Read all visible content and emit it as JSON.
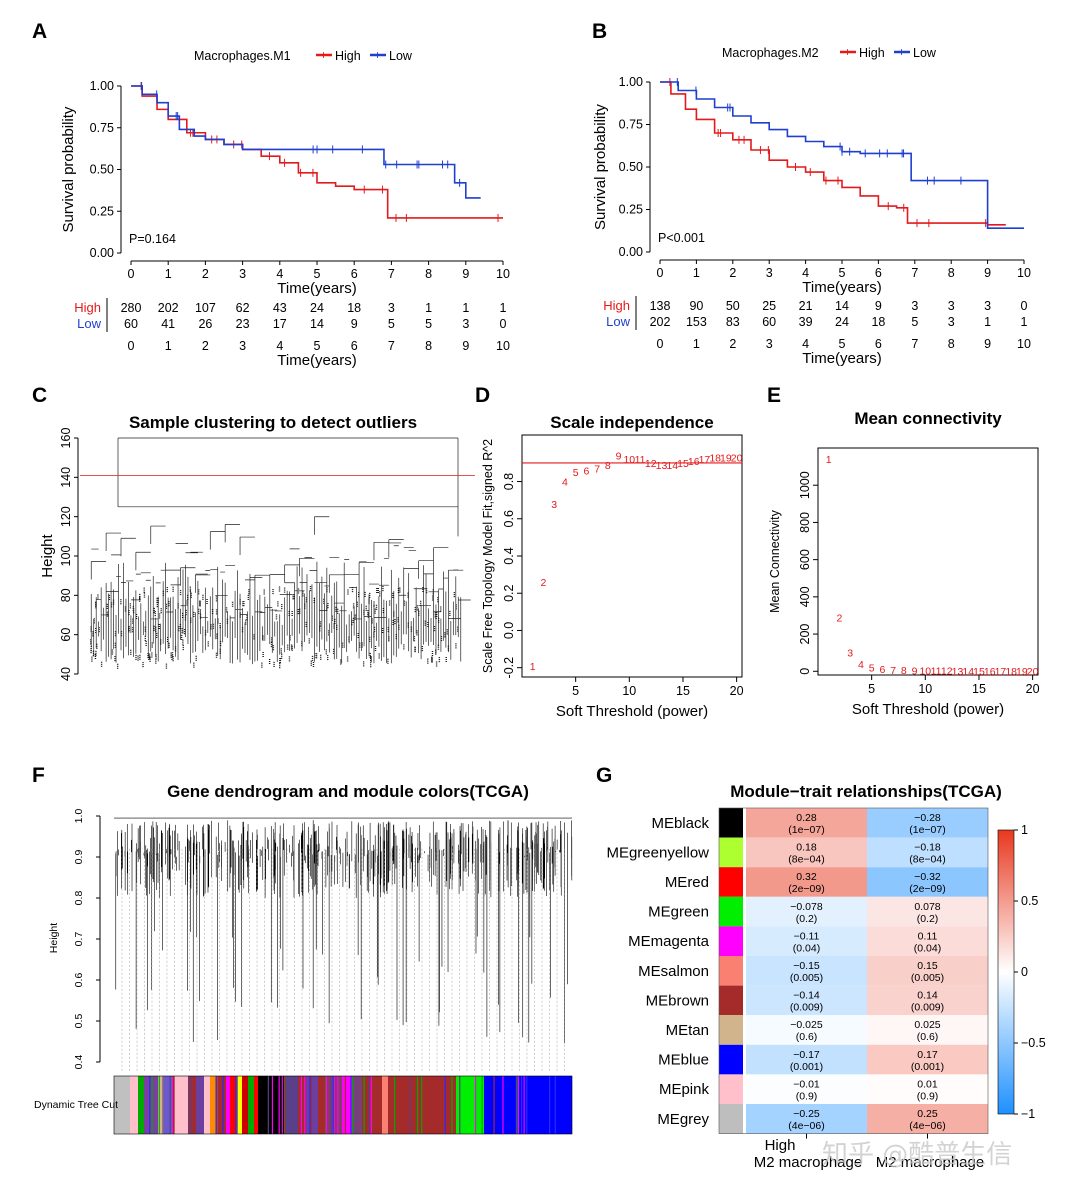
{
  "panels": {
    "A": {
      "label": "A"
    },
    "B": {
      "label": "B"
    },
    "C": {
      "label": "C"
    },
    "D": {
      "label": "D"
    },
    "E": {
      "label": "E"
    },
    "F": {
      "label": "F"
    },
    "G": {
      "label": "G"
    }
  },
  "watermark": "知乎 @酷普生信",
  "chart_data": [
    {
      "id": "A",
      "type": "line",
      "legend_title": "Macrophages.M1",
      "xlabel": "Time(years)",
      "ylabel": "Survival probability",
      "xlim": [
        0,
        10
      ],
      "ylim": [
        0,
        1
      ],
      "yticks": [
        "0.00",
        "0.25",
        "0.50",
        "0.75",
        "1.00"
      ],
      "xticks": [
        0,
        1,
        2,
        3,
        4,
        5,
        6,
        7,
        8,
        9,
        10
      ],
      "pvalue": "P=0.164",
      "colors": {
        "High": "#e31a1c",
        "Low": "#1f3fd1"
      },
      "series": [
        {
          "name": "High",
          "x": [
            0,
            0.3,
            0.7,
            1,
            1.5,
            2,
            2.5,
            3,
            3.5,
            4,
            4.5,
            5,
            5.5,
            6,
            6.5,
            6.9,
            7.5,
            8,
            9,
            10
          ],
          "y": [
            1,
            0.94,
            0.86,
            0.8,
            0.72,
            0.68,
            0.65,
            0.62,
            0.58,
            0.54,
            0.48,
            0.42,
            0.4,
            0.38,
            0.38,
            0.21,
            0.21,
            0.21,
            0.21,
            0.21
          ]
        },
        {
          "name": "Low",
          "x": [
            0,
            0.3,
            0.7,
            1,
            1.3,
            1.7,
            2,
            2.5,
            3,
            4,
            5,
            6,
            6.8,
            7.5,
            8,
            8.5,
            8.7,
            9,
            9.4
          ],
          "y": [
            1,
            0.95,
            0.9,
            0.82,
            0.74,
            0.7,
            0.68,
            0.65,
            0.62,
            0.62,
            0.62,
            0.62,
            0.53,
            0.53,
            0.53,
            0.53,
            0.42,
            0.33,
            0.33
          ]
        }
      ],
      "risk_table": {
        "High": [
          280,
          202,
          107,
          62,
          43,
          24,
          18,
          3,
          1,
          1,
          1
        ],
        "Low": [
          60,
          41,
          26,
          23,
          17,
          14,
          9,
          5,
          5,
          3,
          0
        ]
      }
    },
    {
      "id": "B",
      "type": "line",
      "legend_title": "Macrophages.M2",
      "xlabel": "Time(years)",
      "ylabel": "Survival probability",
      "xlim": [
        0,
        10
      ],
      "ylim": [
        0,
        1
      ],
      "yticks": [
        "0.00",
        "0.25",
        "0.50",
        "0.75",
        "1.00"
      ],
      "xticks": [
        0,
        1,
        2,
        3,
        4,
        5,
        6,
        7,
        8,
        9,
        10
      ],
      "pvalue": "P<0.001",
      "colors": {
        "High": "#e31a1c",
        "Low": "#1f3fd1"
      },
      "series": [
        {
          "name": "High",
          "x": [
            0,
            0.3,
            0.7,
            1,
            1.5,
            2,
            2.5,
            3,
            3.5,
            4,
            4.5,
            5,
            5.5,
            6,
            6.5,
            6.8,
            7.5,
            8,
            8.6,
            9,
            9.5
          ],
          "y": [
            1,
            0.93,
            0.84,
            0.78,
            0.7,
            0.66,
            0.6,
            0.54,
            0.5,
            0.47,
            0.42,
            0.38,
            0.33,
            0.27,
            0.26,
            0.17,
            0.17,
            0.17,
            0.17,
            0.16,
            0.16
          ]
        },
        {
          "name": "Low",
          "x": [
            0,
            0.5,
            1,
            1.5,
            2,
            2.5,
            3,
            3.5,
            4,
            4.5,
            5,
            5.5,
            6,
            6.5,
            6.9,
            7.5,
            8,
            8.6,
            9,
            10
          ],
          "y": [
            1,
            0.95,
            0.9,
            0.85,
            0.8,
            0.76,
            0.72,
            0.68,
            0.65,
            0.62,
            0.59,
            0.58,
            0.58,
            0.58,
            0.42,
            0.42,
            0.42,
            0.42,
            0.14,
            0.14
          ]
        }
      ],
      "risk_table": {
        "High": [
          138,
          90,
          50,
          25,
          21,
          14,
          9,
          3,
          3,
          3,
          0
        ],
        "Low": [
          202,
          153,
          83,
          60,
          39,
          24,
          18,
          5,
          3,
          1,
          1
        ]
      }
    },
    {
      "id": "C",
      "type": "dendrogram",
      "title": "Sample clustering to detect outliers",
      "ylabel": "Height",
      "ylim": [
        40,
        165
      ],
      "yticks": [
        40,
        60,
        80,
        100,
        120,
        140,
        160
      ],
      "cut_height": 141
    },
    {
      "id": "D",
      "type": "scatter",
      "title": "Scale independence",
      "xlabel": "Soft Threshold (power)",
      "ylabel": "Scale Free Topology Model Fit,signed R^2",
      "xlim": [
        0,
        20.5
      ],
      "ylim": [
        -0.25,
        1.05
      ],
      "xticks": [
        5,
        10,
        15,
        20
      ],
      "yticks": [
        "-0.2",
        "0.0",
        "0.2",
        "0.4",
        "0.6",
        "0.8"
      ],
      "hline": 0.9,
      "x": [
        1,
        2,
        3,
        4,
        5,
        6,
        7,
        8,
        9,
        10,
        11,
        12,
        13,
        14,
        15,
        16,
        17,
        18,
        19,
        20
      ],
      "y": [
        -0.19,
        0.26,
        0.68,
        0.8,
        0.85,
        0.86,
        0.87,
        0.89,
        0.94,
        0.92,
        0.92,
        0.9,
        0.89,
        0.89,
        0.9,
        0.91,
        0.92,
        0.93,
        0.93,
        0.93
      ]
    },
    {
      "id": "E",
      "type": "scatter",
      "title": "Mean connectivity",
      "xlabel": "Soft Threshold (power)",
      "ylabel": "Mean Connectivity",
      "xlim": [
        0,
        20.5
      ],
      "ylim": [
        -20,
        1200
      ],
      "xticks": [
        5,
        10,
        15,
        20
      ],
      "yticks": [
        "0",
        "200",
        "400",
        "600",
        "800",
        "1000"
      ],
      "x": [
        1,
        2,
        3,
        4,
        5,
        6,
        7,
        8,
        9,
        10,
        11,
        12,
        13,
        14,
        15,
        16,
        17,
        18,
        19,
        20
      ],
      "y": [
        1140,
        290,
        100,
        40,
        20,
        12,
        8,
        6,
        5,
        4,
        3,
        3,
        2,
        2,
        2,
        2,
        2,
        2,
        2,
        2
      ]
    },
    {
      "id": "F",
      "type": "dendrogram",
      "title": "Gene dendrogram and module colors(TCGA)",
      "ylabel": "Height",
      "ylim": [
        0.4,
        1.0
      ],
      "yticks": [
        "0.4",
        "0.5",
        "0.6",
        "0.7",
        "0.8",
        "0.9",
        "1.0"
      ],
      "color_bar_label": "Dynamic Tree Cut"
    },
    {
      "id": "G",
      "type": "heatmap",
      "title": "Module−trait relationships(TCGA)",
      "columns": [
        "M2 macrophage.High",
        "M2 macrophage.Low"
      ],
      "column_labels_visible": [
        "High",
        "M2 macrophage",
        "M2 macrophage"
      ],
      "rows": [
        "MEblack",
        "MEgreenyellow",
        "MEred",
        "MEgreen",
        "MEmagenta",
        "MEsalmon",
        "MEbrown",
        "MEtan",
        "MEblue",
        "MEpink",
        "MEgrey"
      ],
      "row_colors": [
        "#000000",
        "#adff2f",
        "#ff0000",
        "#00ee00",
        "#ff00ff",
        "#fa8072",
        "#a52a2a",
        "#d2b48c",
        "#0000ff",
        "#ffc0cb",
        "#bebebe"
      ],
      "values": [
        [
          0.28,
          -0.28
        ],
        [
          0.18,
          -0.18
        ],
        [
          0.32,
          -0.32
        ],
        [
          -0.078,
          0.078
        ],
        [
          -0.11,
          0.11
        ],
        [
          -0.15,
          0.15
        ],
        [
          -0.14,
          0.14
        ],
        [
          -0.025,
          0.025
        ],
        [
          -0.17,
          0.17
        ],
        [
          -0.01,
          0.01
        ],
        [
          -0.25,
          0.25
        ]
      ],
      "value_labels": [
        [
          "0.28",
          "−0.28"
        ],
        [
          "0.18",
          "−0.18"
        ],
        [
          "0.32",
          "−0.32"
        ],
        [
          "−0.078",
          "0.078"
        ],
        [
          "−0.11",
          "0.11"
        ],
        [
          "−0.15",
          "0.15"
        ],
        [
          "−0.14",
          "0.14"
        ],
        [
          "−0.025",
          "0.025"
        ],
        [
          "−0.17",
          "0.17"
        ],
        [
          "−0.01",
          "0.01"
        ],
        [
          "−0.25",
          "0.25"
        ]
      ],
      "pvalues": [
        [
          "(1e−07)",
          "(1e−07)"
        ],
        [
          "(8e−04)",
          "(8e−04)"
        ],
        [
          "(2e−09)",
          "(2e−09)"
        ],
        [
          "(0.2)",
          "(0.2)"
        ],
        [
          "(0.04)",
          "(0.04)"
        ],
        [
          "(0.005)",
          "(0.005)"
        ],
        [
          "(0.009)",
          "(0.009)"
        ],
        [
          "(0.6)",
          "(0.6)"
        ],
        [
          "(0.001)",
          "(0.001)"
        ],
        [
          "(0.9)",
          "(0.9)"
        ],
        [
          "(4e−06)",
          "(4e−06)"
        ]
      ],
      "scale_ticks": [
        "1",
        "0.5",
        "0",
        "−0.5",
        "−1"
      ],
      "scale_colors": {
        "low": "#1e90ff",
        "mid": "#ffffff",
        "high": "#e8381f"
      }
    }
  ]
}
